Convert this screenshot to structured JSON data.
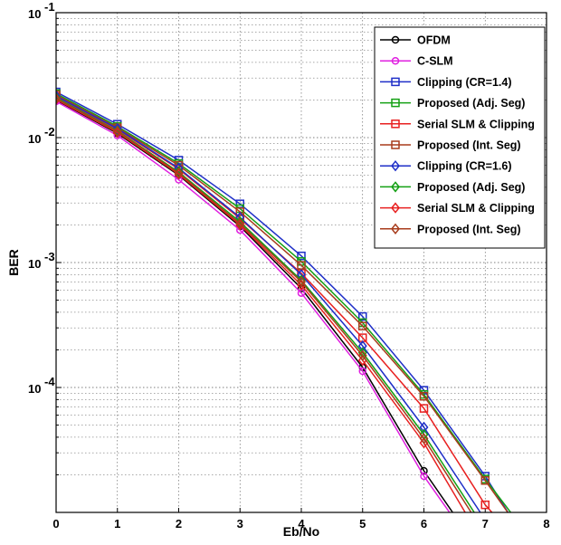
{
  "chart_data": {
    "type": "line",
    "xlabel": "Eb/No",
    "ylabel": "BER",
    "xlim": [
      0,
      8
    ],
    "ylim": [
      1e-05,
      0.1
    ],
    "yscale": "log",
    "grid": true,
    "legend_position": "top-right",
    "x_ticks": [
      "0",
      "1",
      "2",
      "3",
      "4",
      "5",
      "6",
      "7",
      "8"
    ],
    "y_ticks": [
      {
        "base": "10",
        "exp": "-1",
        "value": 0.1
      },
      {
        "base": "10",
        "exp": "-2",
        "value": 0.01
      },
      {
        "base": "10",
        "exp": "-3",
        "value": 0.001
      },
      {
        "base": "10",
        "exp": "-4",
        "value": 0.0001
      }
    ],
    "series": [
      {
        "name": "OFDM",
        "color": "#000000",
        "marker": "circle",
        "x": [
          0,
          1,
          2,
          3,
          4,
          5,
          6,
          6.5
        ],
        "y": [
          0.02,
          0.0108,
          0.005,
          0.00195,
          0.00062,
          0.000145,
          2.15e-05,
          9.5e-06
        ]
      },
      {
        "name": "C-SLM",
        "color": "#e020e0",
        "marker": "circle",
        "x": [
          0,
          1,
          2,
          3,
          4,
          5,
          6,
          6.45
        ],
        "y": [
          0.0195,
          0.0104,
          0.0046,
          0.00182,
          0.00057,
          0.000135,
          1.95e-05,
          9.5e-06
        ]
      },
      {
        "name": "Clipping (CR=1.4)",
        "color": "#1f2fc8",
        "marker": "square",
        "x": [
          0,
          1,
          2,
          3,
          4,
          5,
          6,
          7,
          7.4
        ],
        "y": [
          0.0232,
          0.0128,
          0.0066,
          0.00295,
          0.00113,
          0.00037,
          9.5e-05,
          1.95e-05,
          9.5e-06
        ]
      },
      {
        "name": "Proposed (Adj. Seg)",
        "color": "#14a014",
        "marker": "square",
        "x": [
          0,
          1,
          2,
          3,
          4,
          5,
          6,
          7,
          7.45
        ],
        "y": [
          0.0225,
          0.0123,
          0.0062,
          0.0027,
          0.00102,
          0.00033,
          8.8e-05,
          1.85e-05,
          9.5e-06
        ]
      },
      {
        "name": "Serial SLM & Clipping",
        "color": "#e82020",
        "marker": "square",
        "x": [
          0,
          1,
          2,
          3,
          4,
          5,
          6,
          7,
          7.15
        ],
        "y": [
          0.0213,
          0.0116,
          0.0056,
          0.00225,
          0.00082,
          0.00025,
          6.8e-05,
          1.15e-05,
          9.5e-06
        ]
      },
      {
        "name": "Proposed (Int. Seg)",
        "color": "#a83c1c",
        "marker": "square",
        "x": [
          0,
          1,
          2,
          3,
          4,
          5,
          6,
          7,
          7.4
        ],
        "y": [
          0.022,
          0.012,
          0.006,
          0.00255,
          0.00095,
          0.00031,
          8.5e-05,
          1.8e-05,
          9.5e-06
        ]
      },
      {
        "name": "Clipping (CR=1.6)",
        "color": "#1f2fc8",
        "marker": "diamond",
        "x": [
          0,
          1,
          2,
          3,
          4,
          5,
          6,
          6.95
        ],
        "y": [
          0.0215,
          0.0118,
          0.0057,
          0.0023,
          0.0008,
          0.000215,
          4.8e-05,
          9.5e-06
        ]
      },
      {
        "name": "Proposed (Adj. Seg)",
        "color": "#14a014",
        "marker": "diamond",
        "x": [
          0,
          1,
          2,
          3,
          4,
          5,
          6,
          6.85
        ],
        "y": [
          0.0208,
          0.0113,
          0.0053,
          0.00212,
          0.00072,
          0.00019,
          4.2e-05,
          9.5e-06
        ]
      },
      {
        "name": "Serial SLM & Clipping",
        "color": "#e82020",
        "marker": "diamond",
        "x": [
          0,
          1,
          2,
          3,
          4,
          5,
          6,
          6.7
        ],
        "y": [
          0.0202,
          0.011,
          0.0051,
          0.002,
          0.00066,
          0.000165,
          3.6e-05,
          9.5e-06
        ]
      },
      {
        "name": "Proposed (Int. Seg)",
        "color": "#a83c1c",
        "marker": "diamond",
        "x": [
          0,
          1,
          2,
          3,
          4,
          5,
          6,
          6.8
        ],
        "y": [
          0.0205,
          0.0112,
          0.0052,
          0.00205,
          0.0007,
          0.00018,
          3.9e-05,
          9.5e-06
        ]
      }
    ]
  }
}
